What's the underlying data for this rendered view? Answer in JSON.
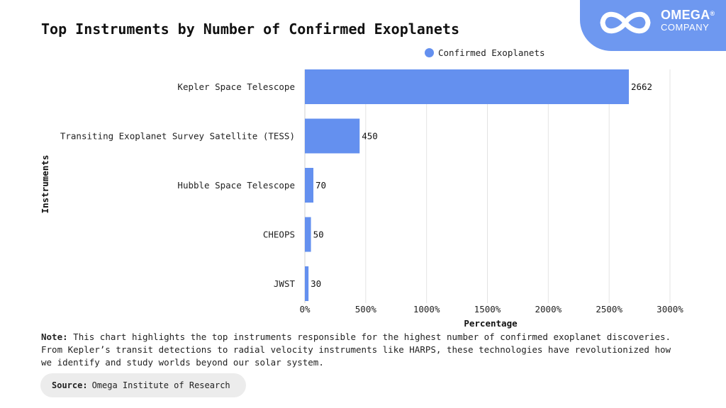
{
  "page": {
    "title": "Top Instruments by Number of Confirmed Exoplanets",
    "note_label": "Note:",
    "note_text": "This chart highlights the top instruments responsible for the highest number of confirmed exoplanet discoveries. From Kepler’s transit detections to radial velocity instruments like HARPS, these technologies have revolutionized how we identify and study worlds beyond our solar system.",
    "source_label": "Source:",
    "source_text": "Omega Institute of Research"
  },
  "logo": {
    "name": "OMEGA",
    "reg": "®",
    "sub": "COMPANY",
    "icon": "infinity-icon"
  },
  "colors": {
    "bar": "#6490ef",
    "logo_bg": "#6e98f0",
    "grid": "#e3e3e3"
  },
  "chart_data": {
    "type": "bar",
    "orientation": "horizontal",
    "categories": [
      "Kepler Space Telescope",
      "Transiting Exoplanet Survey Satellite (TESS)",
      "Hubble Space Telescope",
      "CHEOPS",
      "JWST"
    ],
    "series": [
      {
        "name": "Confirmed Exoplanets",
        "values": [
          2662,
          450,
          70,
          50,
          30
        ]
      }
    ],
    "data_labels": [
      "2662",
      "450",
      "70",
      "50",
      "30"
    ],
    "xlabel": "Percentage",
    "ylabel": "Instruments",
    "xlim": [
      0,
      3000
    ],
    "xticks": [
      0,
      500,
      1000,
      1500,
      2000,
      2500,
      3000
    ],
    "xtick_labels": [
      "0%",
      "500%",
      "1000%",
      "1500%",
      "2000%",
      "2500%",
      "3000%"
    ],
    "grid": "vertical",
    "legend_position": "top-right"
  }
}
